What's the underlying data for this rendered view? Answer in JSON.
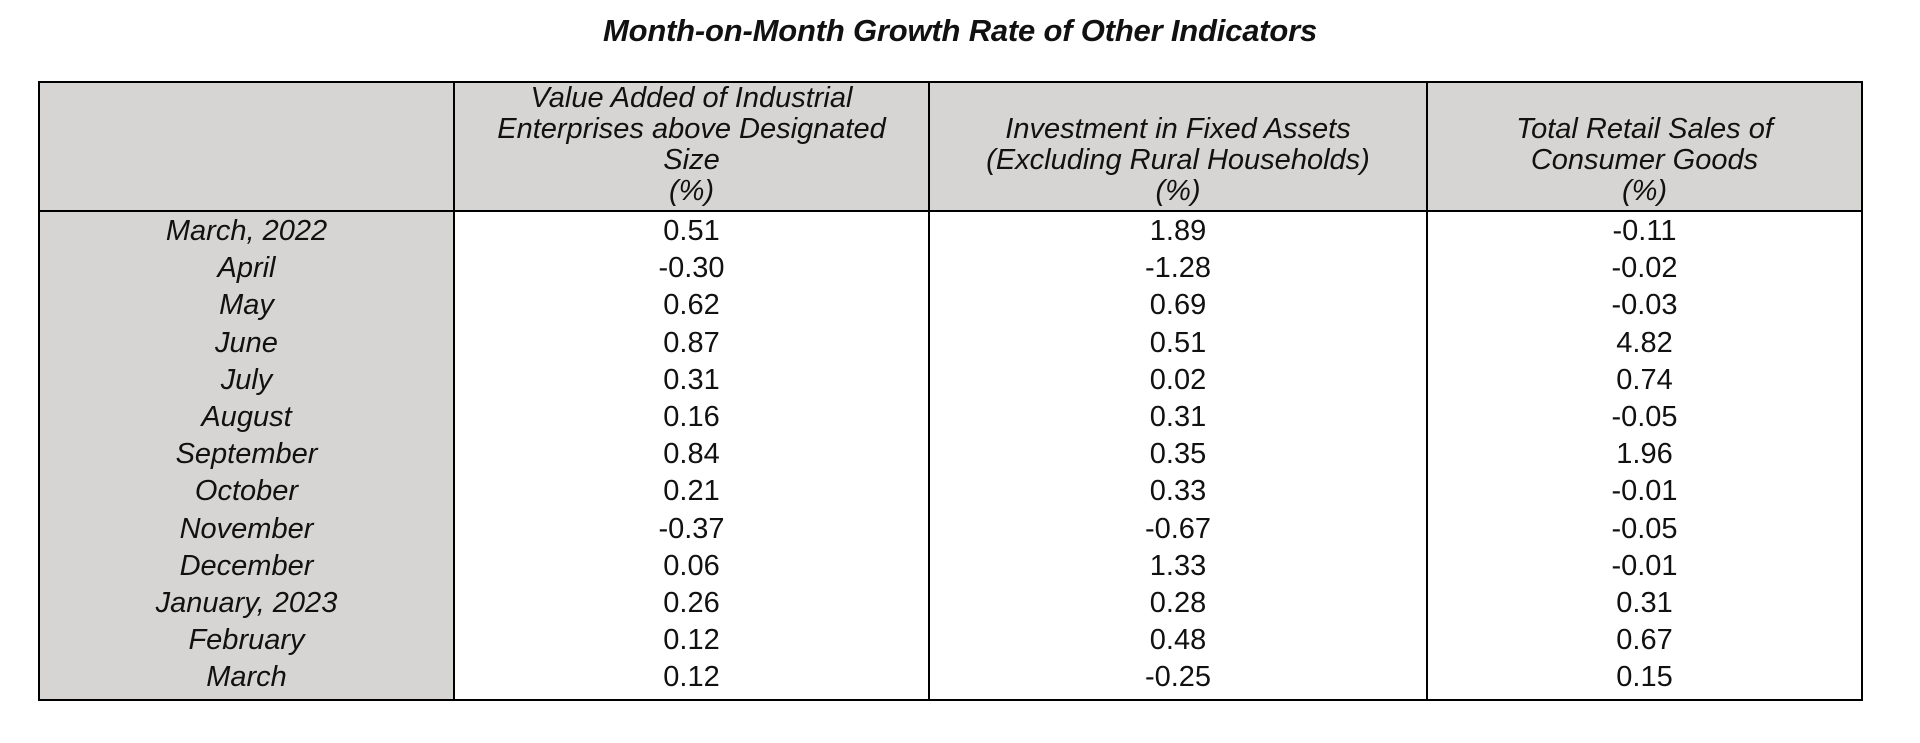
{
  "chart_data": {
    "type": "table",
    "title": "Month-on-Month Growth Rate of Other Indicators",
    "columns": [
      "",
      "Value Added of Industrial\nEnterprises above Designated\nSize\n(%)",
      "Investment in Fixed  Assets\n(Excluding Rural Households)\n(%)",
      "Total Retail Sales of\nConsumer Goods\n(%)"
    ],
    "row_labels": [
      "March, 2022",
      "April",
      "May",
      "June",
      "July",
      "August",
      "September",
      "October",
      "November",
      "December",
      "January, 2023",
      "February",
      "March"
    ],
    "series": [
      {
        "name": "Value Added of Industrial Enterprises above Designated Size (%)",
        "values": [
          "0.51",
          "-0.30",
          "0.62",
          "0.87",
          "0.31",
          "0.16",
          "0.84",
          "0.21",
          "-0.37",
          "0.06",
          "0.26",
          "0.12",
          "0.12"
        ]
      },
      {
        "name": "Investment in Fixed  Assets (Excluding Rural Households) (%)",
        "values": [
          "1.89",
          "-1.28",
          "0.69",
          "0.51",
          "0.02",
          "0.31",
          "0.35",
          "0.33",
          "-0.67",
          "1.33",
          "0.28",
          "0.48",
          "-0.25"
        ]
      },
      {
        "name": "Total Retail Sales of Consumer Goods (%)",
        "values": [
          "-0.11",
          "-0.02",
          "-0.03",
          "4.82",
          "0.74",
          "-0.05",
          "1.96",
          "-0.01",
          "-0.05",
          "-0.01",
          "0.31",
          "0.67",
          "0.15"
        ]
      }
    ],
    "colors": {
      "header_bg": "#d7d4d4",
      "row_label_bg": "#d7d4d4",
      "cell_bg": "#ffffff",
      "border": "#000000"
    }
  }
}
